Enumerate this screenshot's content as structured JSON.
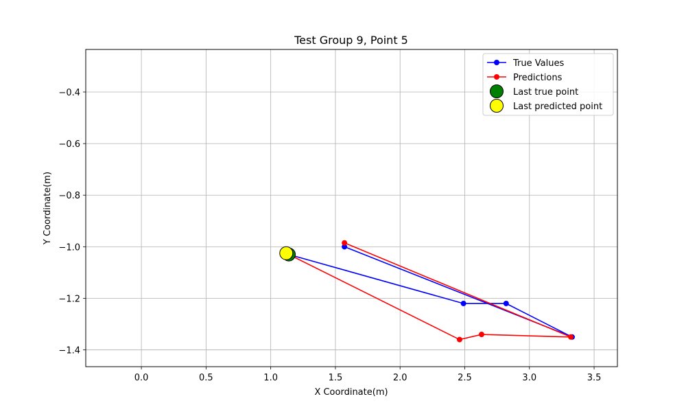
{
  "chart_data": {
    "type": "line",
    "title": "Test Group 9, Point 5",
    "xlabel": "X Coordinate(m)",
    "ylabel": "Y Coordinate(m)",
    "xlim": [
      -0.43,
      3.68
    ],
    "ylim": [
      -1.465,
      -0.235
    ],
    "xticks": [
      0.0,
      0.5,
      1.0,
      1.5,
      2.0,
      2.5,
      3.0,
      3.5
    ],
    "xtick_labels": [
      "0.0",
      "0.5",
      "1.0",
      "1.5",
      "2.0",
      "2.5",
      "3.0",
      "3.5"
    ],
    "yticks": [
      -0.4,
      -0.6,
      -0.8,
      -1.0,
      -1.2,
      -1.4
    ],
    "ytick_labels": [
      "−0.4",
      "−0.6",
      "−0.8",
      "−1.0",
      "−1.2",
      "−1.4"
    ],
    "grid": true,
    "legend_position": "top-right",
    "series": [
      {
        "name": "True Values",
        "color": "#0000ff",
        "x": [
          1.57,
          3.33,
          2.82,
          2.49,
          1.14
        ],
        "y": [
          -1.0,
          -1.35,
          -1.22,
          -1.22,
          -1.03
        ]
      },
      {
        "name": "Predictions",
        "color": "#ff0000",
        "x": [
          1.57,
          3.32,
          2.63,
          2.46,
          1.12
        ],
        "y": [
          -0.985,
          -1.35,
          -1.34,
          -1.36,
          -1.025
        ]
      }
    ],
    "markers": [
      {
        "name": "Last true point",
        "color": "#008000",
        "x": 1.14,
        "y": -1.03
      },
      {
        "name": "Last predicted point",
        "color": "#ffff00",
        "x": 1.12,
        "y": -1.025
      }
    ]
  }
}
